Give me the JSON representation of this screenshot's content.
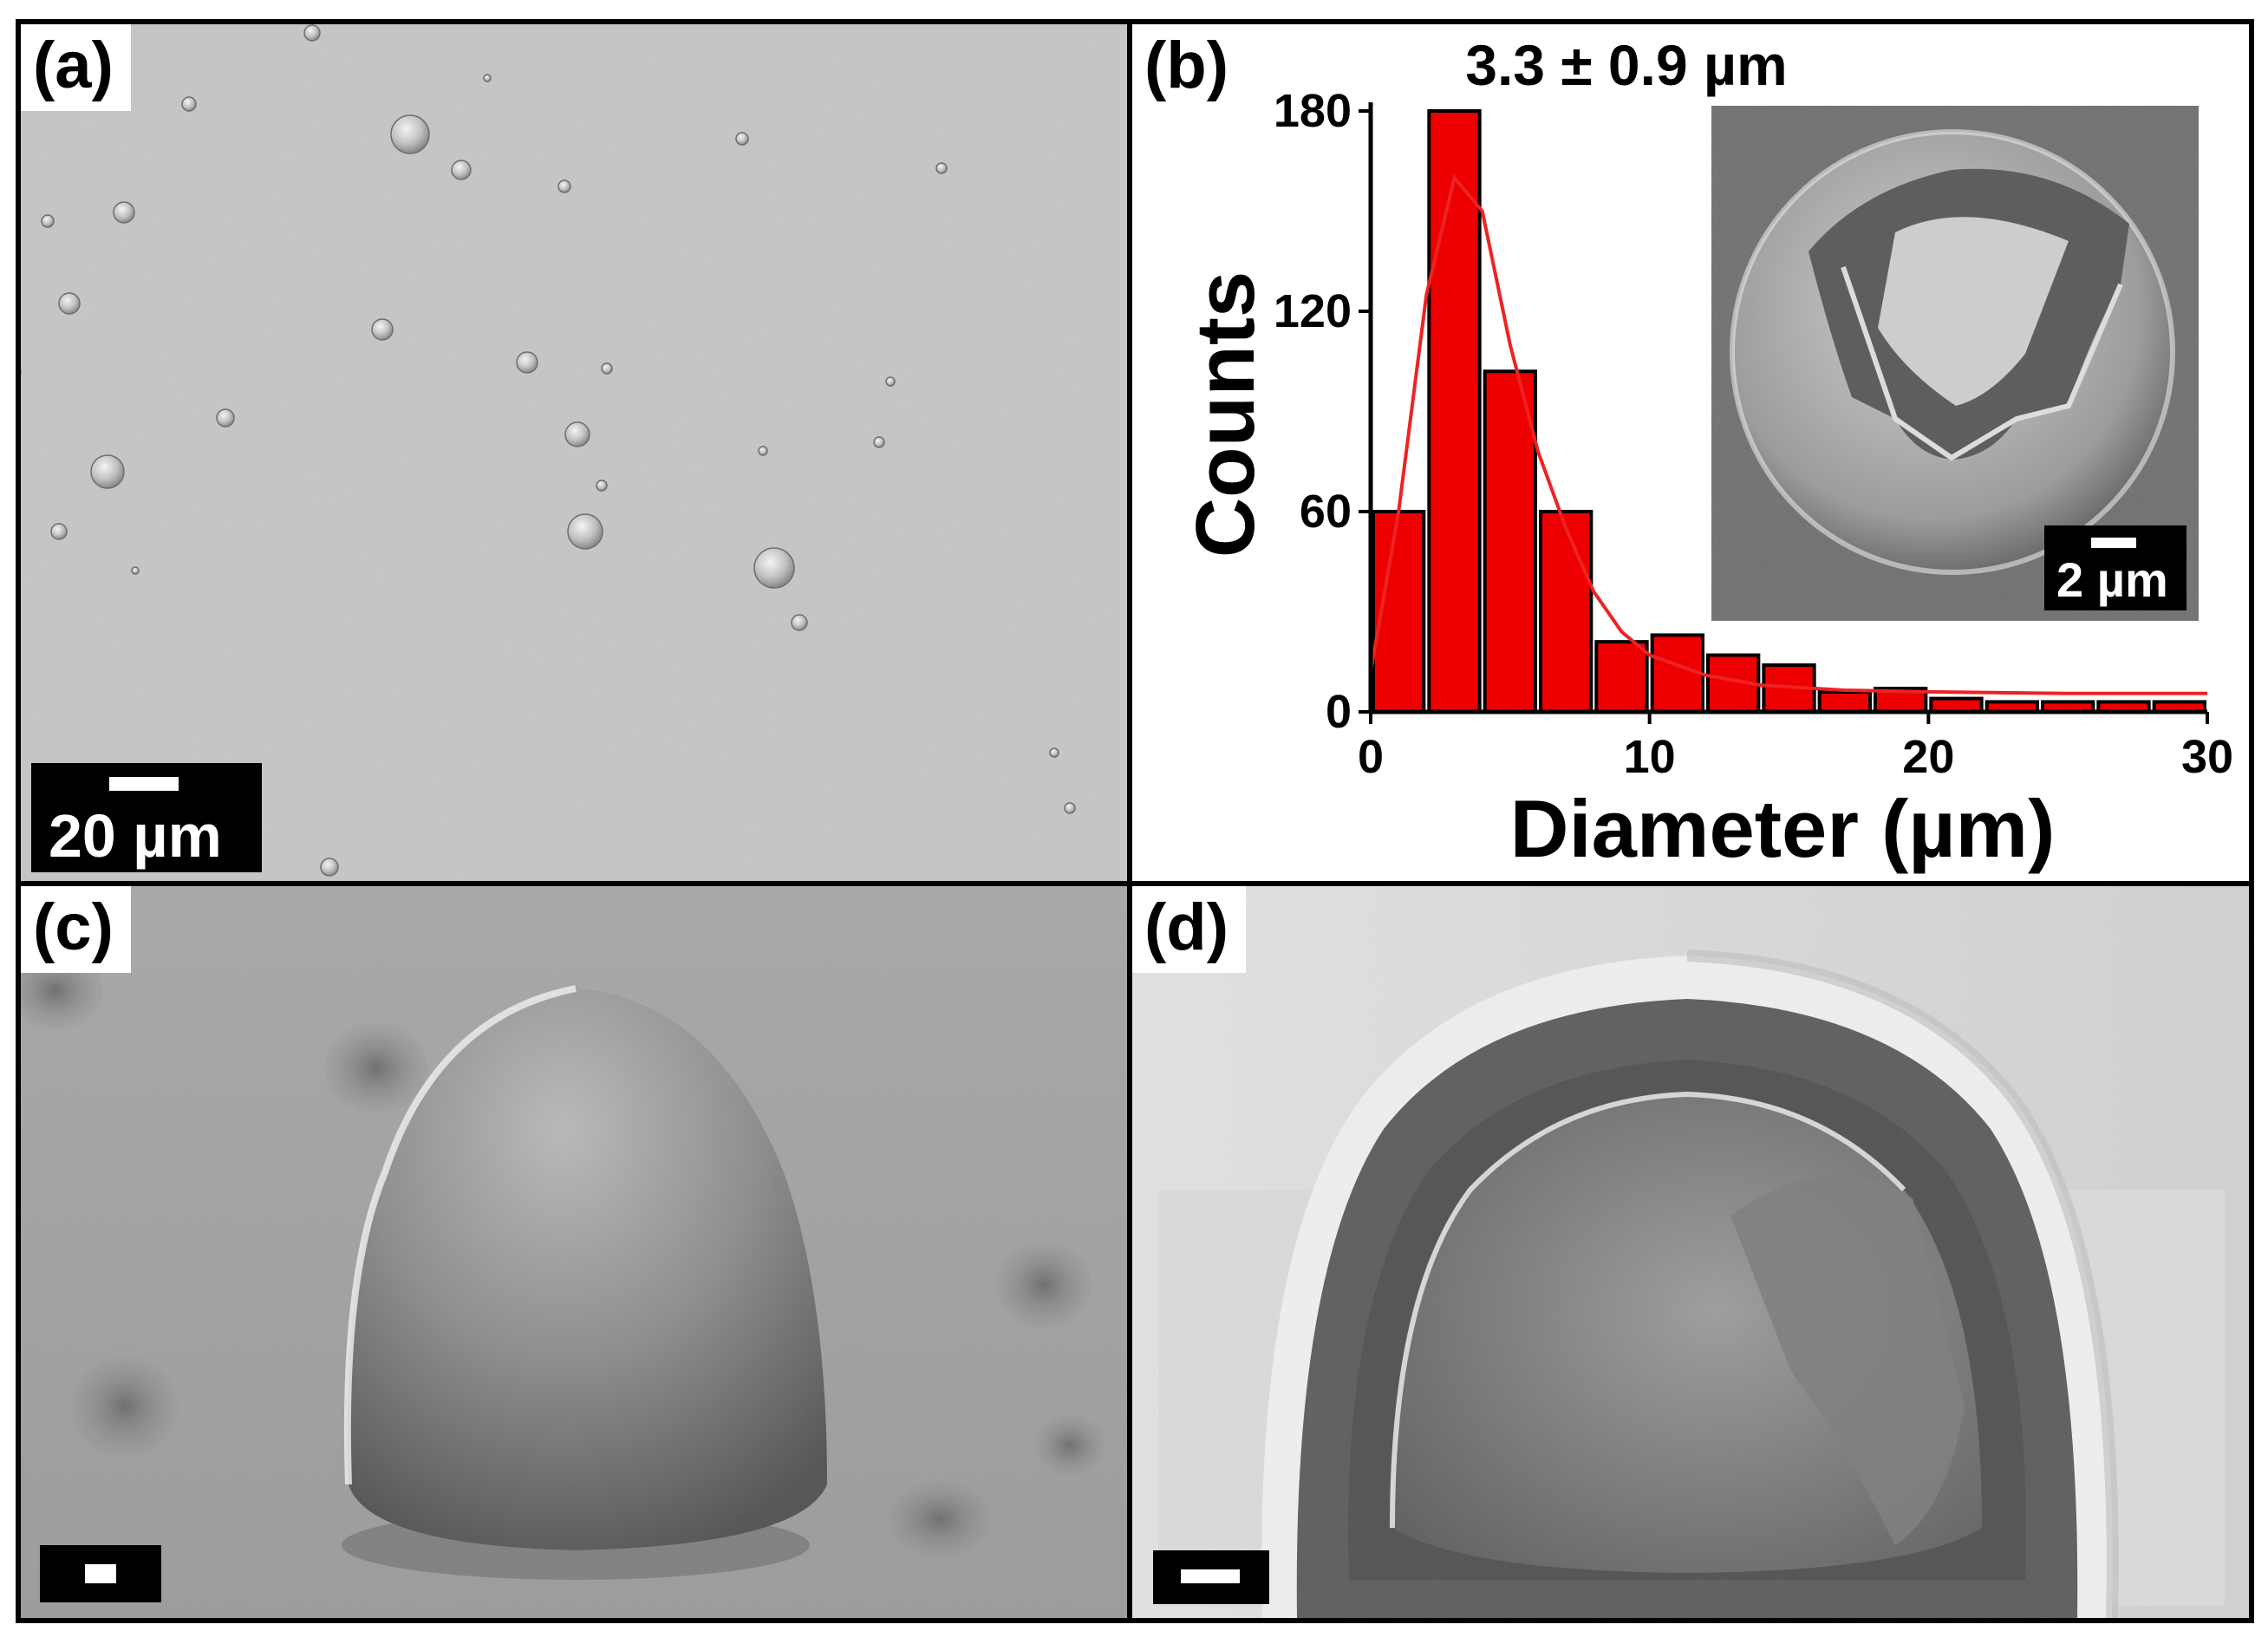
{
  "panels": {
    "a": {
      "label": "(a)",
      "scale_bar": "20 µm"
    },
    "b": {
      "label": "(b)",
      "inset_scale_bar": "2 µm"
    },
    "c": {
      "label": "(c)"
    },
    "d": {
      "label": "(d)"
    }
  },
  "chart_data": {
    "type": "bar",
    "title": "3.3 ± 0.9 µm",
    "xlabel": "Diameter (µm)",
    "ylabel": "Counts",
    "xlim": [
      0,
      30
    ],
    "ylim": [
      0,
      180
    ],
    "xticks": [
      "0",
      "10",
      "20",
      "30"
    ],
    "yticks": [
      "0",
      "60",
      "120",
      "180"
    ],
    "bin_width": 2,
    "bins": [
      {
        "x": 1,
        "count": 60
      },
      {
        "x": 3,
        "count": 180
      },
      {
        "x": 5,
        "count": 102
      },
      {
        "x": 7,
        "count": 60
      },
      {
        "x": 9,
        "count": 21
      },
      {
        "x": 11,
        "count": 23
      },
      {
        "x": 13,
        "count": 17
      },
      {
        "x": 15,
        "count": 14
      },
      {
        "x": 17,
        "count": 6
      },
      {
        "x": 19,
        "count": 7
      },
      {
        "x": 21,
        "count": 4
      },
      {
        "x": 23,
        "count": 3
      },
      {
        "x": 25,
        "count": 3
      },
      {
        "x": 27,
        "count": 3
      },
      {
        "x": 29,
        "count": 3
      }
    ],
    "fit": {
      "type": "log-normal",
      "points": [
        [
          0,
          12
        ],
        [
          1,
          60
        ],
        [
          2,
          125
        ],
        [
          3,
          160
        ],
        [
          4,
          150
        ],
        [
          5,
          110
        ],
        [
          6,
          78
        ],
        [
          7,
          55
        ],
        [
          8,
          36
        ],
        [
          9,
          24
        ],
        [
          10,
          17
        ],
        [
          12,
          11
        ],
        [
          14,
          8
        ],
        [
          17,
          6.5
        ],
        [
          20,
          6
        ],
        [
          25,
          5.5
        ],
        [
          30,
          5.5
        ]
      ]
    },
    "colors": {
      "bars": "#ee0000",
      "fit": "#ee2222"
    }
  }
}
